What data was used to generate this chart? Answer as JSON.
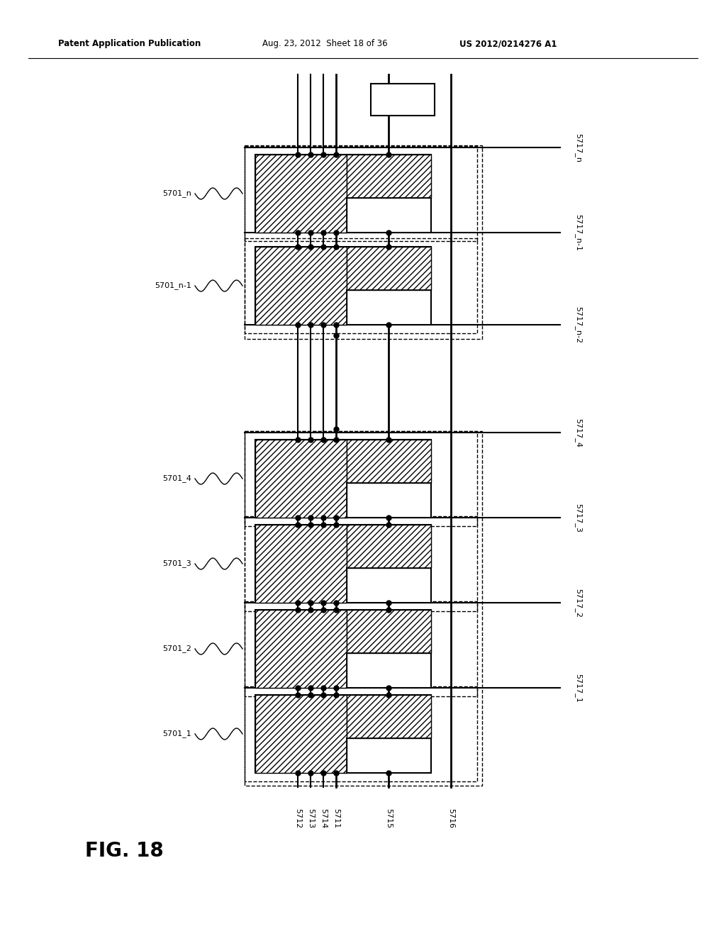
{
  "fig_width": 10.24,
  "fig_height": 13.2,
  "bg_color": "#ffffff",
  "header_left": "Patent Application Publication",
  "header_mid": "Aug. 23, 2012  Sheet 18 of 36",
  "header_right": "US 2012/0214276 A1",
  "fig_label": "FIG. 18",
  "cell_names": [
    "5701_n",
    "5701_n-1",
    "5701_4",
    "5701_3",
    "5701_2",
    "5701_1"
  ],
  "right_labels": [
    "5717_n",
    "5717_n-1",
    "5717_n-2",
    "5717_4",
    "5717_3",
    "5717_2",
    "5717_1"
  ],
  "bottom_labels": [
    "5712",
    "5713",
    "5714",
    "5711",
    "5715",
    "5716"
  ],
  "hatch": "////"
}
